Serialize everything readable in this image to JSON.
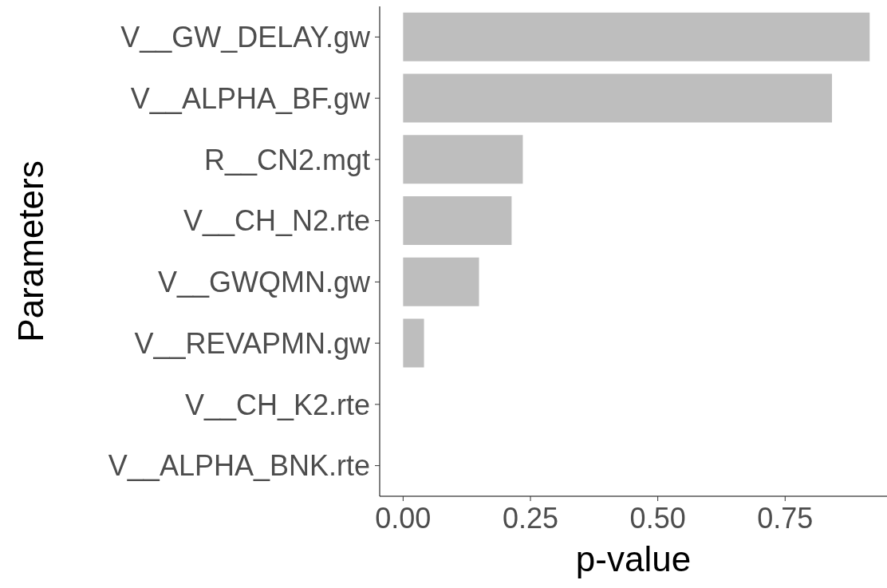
{
  "chart_data": {
    "type": "bar",
    "orientation": "horizontal",
    "xlabel": "p-value",
    "ylabel": "Parameters",
    "categories": [
      "V__GW_DELAY.gw",
      "V__ALPHA_BF.gw",
      "R__CN2.mgt",
      "V__CH_N2.rte",
      "V__GWQMN.gw",
      "V__REVAPMN.gw",
      "V__CH_K2.rte",
      "V__ALPHA_BNK.rte"
    ],
    "values": [
      0.916,
      0.842,
      0.235,
      0.213,
      0.149,
      0.041,
      0,
      0
    ],
    "color": "#bebebe",
    "xlim": [
      -0.046,
      0.95
    ],
    "xticks": [
      {
        "value": 0,
        "label": "0.00"
      },
      {
        "value": 0.25,
        "label": "0.25"
      },
      {
        "value": 0.5,
        "label": "0.50"
      },
      {
        "value": 0.75,
        "label": "0.75"
      }
    ],
    "grid": false,
    "legend": false
  }
}
